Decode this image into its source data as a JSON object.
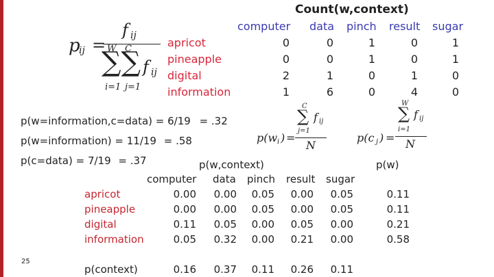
{
  "top": {
    "title": "Count(w,context)",
    "columns": [
      "computer",
      "data",
      "pinch",
      "result",
      "sugar"
    ],
    "rows": [
      {
        "word": "apricot",
        "values": [
          "0",
          "0",
          "1",
          "0",
          "1"
        ]
      },
      {
        "word": "pineapple",
        "values": [
          "0",
          "0",
          "1",
          "0",
          "1"
        ]
      },
      {
        "word": "digital",
        "values": [
          "2",
          "1",
          "0",
          "1",
          "0"
        ]
      },
      {
        "word": "information",
        "values": [
          "1",
          "6",
          "0",
          "4",
          "0"
        ]
      }
    ]
  },
  "formula": {
    "lhs": "p",
    "lhs_sub": "ij",
    "num": "f",
    "num_sub": "ij",
    "den_W": "W",
    "den_C": "C",
    "den_i": "i=1",
    "den_j": "j=1",
    "den_f": "f",
    "den_f_sub": "ij"
  },
  "pw_formula": {
    "lhs": "p(w",
    "lhs_sub": "i",
    "lhs_end": ")",
    "sum_top": "C",
    "sum_bottom": "j=1",
    "f": "f",
    "f_sub": "ij",
    "den": "N"
  },
  "pc_formula": {
    "lhs": "p(c",
    "lhs_sub": "j",
    "lhs_end": ")",
    "sum_top": "W",
    "sum_bottom": "i=1",
    "f": "f",
    "f_sub": "ij",
    "den": "N"
  },
  "examples": {
    "line1_a": "p(w=information,c=data) = ",
    "line1_b": "6/19",
    "line1_c": "= .32",
    "line2_a": "p(w=information) = ",
    "line2_b": "11/19",
    "line2_c": "= .58",
    "line3_a": "p(c=data) = ",
    "line3_b": "7/19",
    "line3_c": "= .37"
  },
  "bottom": {
    "title": "p(w,context)",
    "pw_title": "p(w)",
    "columns": [
      "computer",
      "data",
      "pinch",
      "result",
      "sugar"
    ],
    "rows": [
      {
        "word": "apricot",
        "values": [
          "0.00",
          "0.00",
          "0.05",
          "0.00",
          "0.05"
        ],
        "pw": "0.11"
      },
      {
        "word": "pineapple",
        "values": [
          "0.00",
          "0.00",
          "0.05",
          "0.00",
          "0.05"
        ],
        "pw": "0.11"
      },
      {
        "word": "digital",
        "values": [
          "0.11",
          "0.05",
          "0.00",
          "0.05",
          "0.00"
        ],
        "pw": "0.21"
      },
      {
        "word": "information",
        "values": [
          "0.05",
          "0.32",
          "0.00",
          "0.21",
          "0.00"
        ],
        "pw": "0.58"
      }
    ],
    "context_label": "p(context)",
    "context_values": [
      "0.16",
      "0.37",
      "0.11",
      "0.26",
      "0.11"
    ]
  },
  "page_number": "25",
  "colors": {
    "accent_bar": "#b3222a",
    "header_blue": "#3a3ab0",
    "word_red": "#d9263a"
  }
}
